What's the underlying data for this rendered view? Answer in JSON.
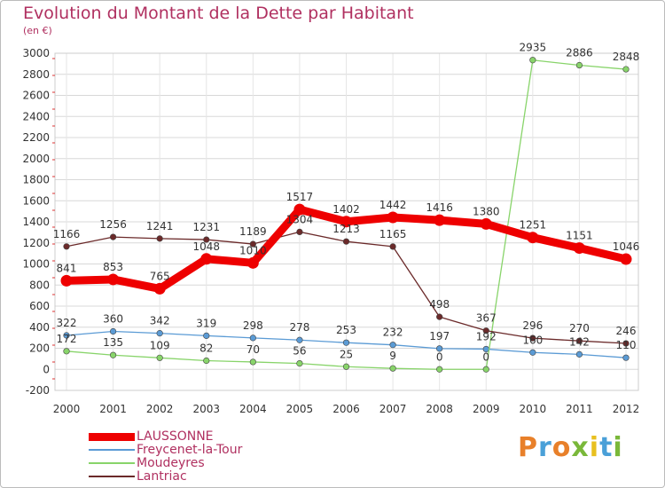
{
  "title": "Evolution du Montant de la Dette par Habitant",
  "subtitle": "(en €)",
  "logo": {
    "text": "Proxiti",
    "colors": [
      "#e8802a",
      "#4aa0d8",
      "#e8802a",
      "#7ab83a",
      "#e8c020",
      "#4aa0d8",
      "#7ab83a"
    ]
  },
  "chart_data": {
    "type": "line",
    "title": "Evolution du Montant de la Dette par Habitant",
    "subtitle": "(en €)",
    "x": [
      "2000",
      "2001",
      "2002",
      "2003",
      "2004",
      "2005",
      "2006",
      "2007",
      "2008",
      "2009",
      "2010",
      "2011",
      "2012"
    ],
    "ylim": [
      -200,
      3000
    ],
    "yticks": [
      -200,
      0,
      200,
      400,
      600,
      800,
      1000,
      1200,
      1400,
      1600,
      1800,
      2000,
      2200,
      2400,
      2600,
      2800,
      3000
    ],
    "grid": true,
    "legend_position": "bottom-left",
    "series": [
      {
        "name": "LAUSSONNE",
        "color": "#ee0000",
        "values": [
          841,
          853,
          765,
          1048,
          1010,
          1517,
          1402,
          1442,
          1416,
          1380,
          1251,
          1151,
          1046
        ],
        "labels": [
          "841",
          "853",
          "765",
          "1048",
          "1010",
          "1517",
          "1402",
          "1442",
          "1416",
          "1380",
          "1251",
          "1151",
          "1046"
        ]
      },
      {
        "name": "Freycenet-la-Tour",
        "color": "#5b9bd5",
        "values": [
          322,
          360,
          342,
          319,
          298,
          278,
          253,
          232,
          197,
          192,
          160,
          142,
          110
        ],
        "labels": [
          "322",
          "360",
          "342",
          "319",
          "298",
          "278",
          "253",
          "232",
          "197",
          "192",
          "160",
          "142",
          "110"
        ]
      },
      {
        "name": "Moudeyres",
        "color": "#88d46a",
        "values": [
          172,
          135,
          109,
          82,
          70,
          56,
          25,
          9,
          0,
          0,
          2935,
          2886,
          2848
        ],
        "labels": [
          "172",
          "135",
          "109",
          "82",
          "70",
          "56",
          "25",
          "9",
          "0",
          "0",
          "2935",
          "2886",
          "2848"
        ]
      },
      {
        "name": "Lantriac",
        "color": "#6b2a2a",
        "values": [
          1166,
          1256,
          1241,
          1231,
          1189,
          1304,
          1213,
          1165,
          498,
          367,
          296,
          270,
          246
        ],
        "labels": [
          "1166",
          "1256",
          "1241",
          "1231",
          "1189",
          "1304",
          "1213",
          "1165",
          "498",
          "367",
          "296",
          "270",
          "246"
        ]
      }
    ]
  },
  "legend": [
    {
      "label": "LAUSSONNE",
      "color": "#ee0000"
    },
    {
      "label": "Freycenet-la-Tour",
      "color": "#5b9bd5"
    },
    {
      "label": "Moudeyres",
      "color": "#88d46a"
    },
    {
      "label": "Lantriac",
      "color": "#6b2a2a"
    }
  ]
}
